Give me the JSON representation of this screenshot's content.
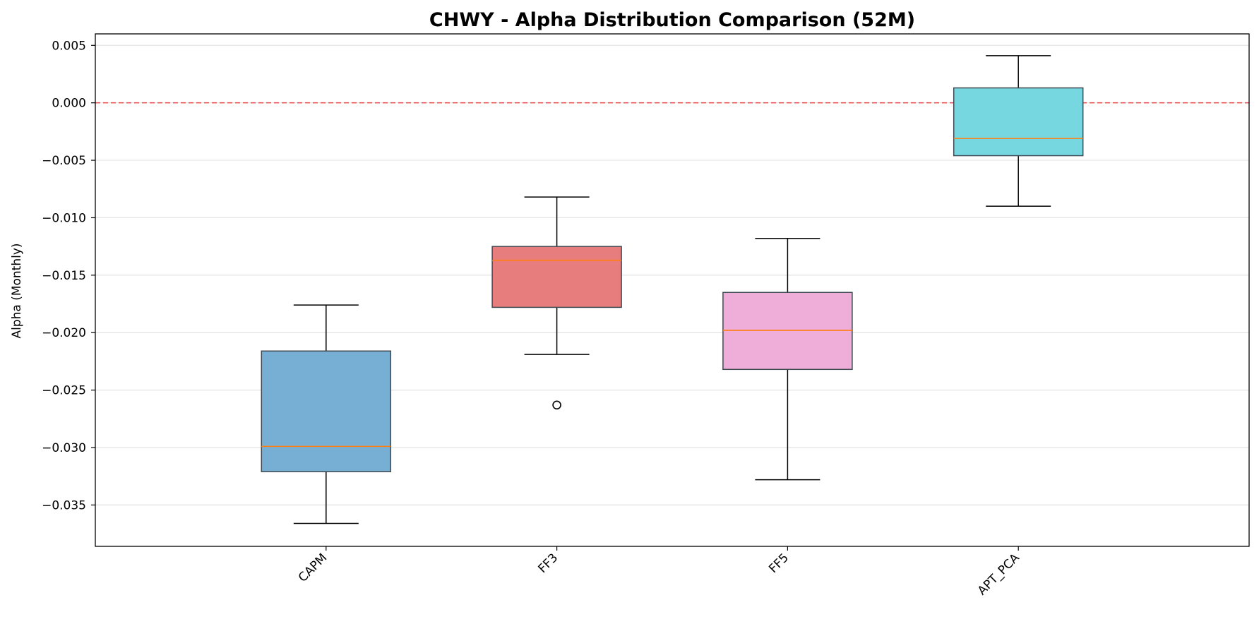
{
  "chart_data": {
    "type": "box",
    "title": "CHWY - Alpha Distribution Comparison (52M)",
    "xlabel": "",
    "ylabel": "Alpha (Monthly)",
    "ylim": [
      -0.0386,
      0.006
    ],
    "yticks": [
      0.005,
      0.0,
      -0.005,
      -0.01,
      -0.015,
      -0.02,
      -0.025,
      -0.03,
      -0.035
    ],
    "ytick_labels": [
      "0.005",
      "0.000",
      "−0.005",
      "−0.010",
      "−0.015",
      "−0.020",
      "−0.025",
      "−0.030",
      "−0.035"
    ],
    "grid": "horizontal",
    "reference_line": {
      "y": 0.0,
      "color": "#e8474b",
      "style": "dashed"
    },
    "median_color": "#ff7f0e",
    "categories": [
      "CAPM",
      "FF3",
      "FF5",
      "APT_PCA"
    ],
    "boxes": [
      {
        "category": "CAPM",
        "whisker_low": -0.0366,
        "q1": -0.0321,
        "median": -0.0299,
        "q3": -0.0216,
        "whisker_high": -0.0176,
        "outliers": [],
        "color": "#77aed3"
      },
      {
        "category": "FF3",
        "whisker_low": -0.0219,
        "q1": -0.0178,
        "median": -0.0137,
        "q3": -0.0125,
        "whisker_high": -0.0082,
        "outliers": [
          -0.0263
        ],
        "color": "#e77d7d"
      },
      {
        "category": "FF5",
        "whisker_low": -0.0328,
        "q1": -0.0232,
        "median": -0.0198,
        "q3": -0.0165,
        "whisker_high": -0.0118,
        "outliers": [],
        "color": "#efadda"
      },
      {
        "category": "APT_PCA",
        "whisker_low": -0.009,
        "q1": -0.0046,
        "median": -0.0031,
        "q3": 0.0013,
        "whisker_high": 0.0041,
        "outliers": [],
        "color": "#76d7e1"
      }
    ]
  }
}
